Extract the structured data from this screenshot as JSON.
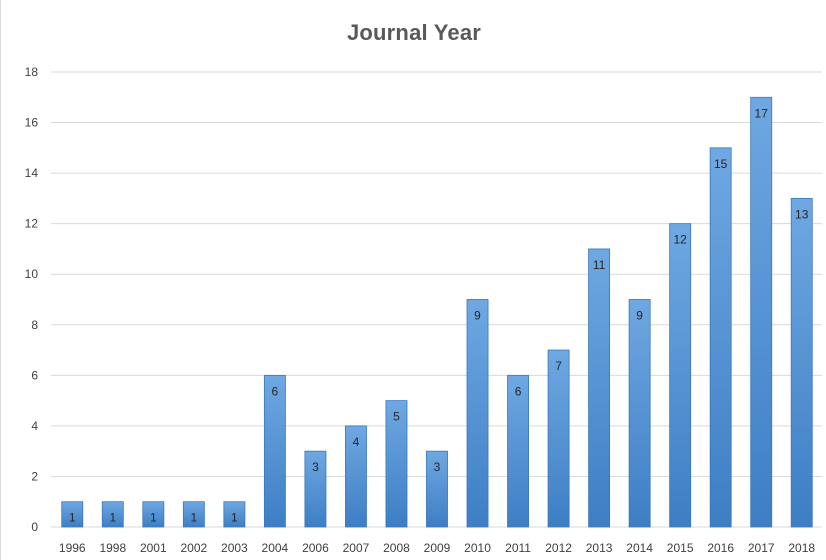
{
  "chart_data": {
    "type": "bar",
    "title": "Journal Year",
    "xlabel": "",
    "ylabel": "",
    "categories": [
      "1996",
      "1998",
      "2001",
      "2002",
      "2003",
      "2004",
      "2006",
      "2007",
      "2008",
      "2009",
      "2010",
      "2011",
      "2012",
      "2013",
      "2014",
      "2015",
      "2016",
      "2017",
      "2018"
    ],
    "values": [
      1,
      1,
      1,
      1,
      1,
      6,
      3,
      4,
      5,
      3,
      9,
      6,
      7,
      11,
      9,
      12,
      15,
      17,
      13
    ],
    "ylim": [
      0,
      18
    ],
    "yticks": [
      0,
      2,
      4,
      6,
      8,
      10,
      12,
      14,
      16,
      18
    ],
    "grid": true,
    "data_labels": true,
    "legend": "none",
    "colors": {
      "bar_top": "#6fa8e2",
      "bar_bottom": "#3d7ec4",
      "bar_stroke": "#3a78bd"
    }
  }
}
